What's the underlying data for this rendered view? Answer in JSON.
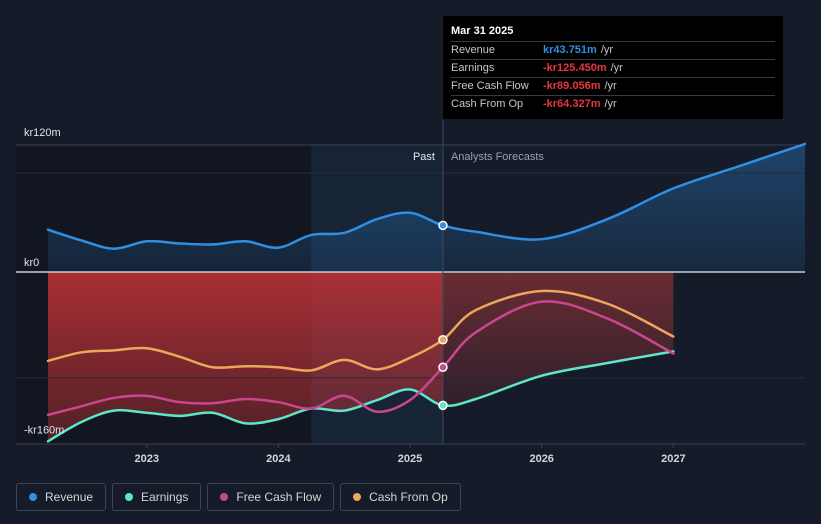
{
  "tooltip": {
    "date": "Mar 31 2025",
    "rows": [
      {
        "label": "Revenue",
        "value": "kr43.751m",
        "unit": "/yr",
        "color": "#2e8fe4"
      },
      {
        "label": "Earnings",
        "value": "-kr125.450m",
        "unit": "/yr",
        "color": "#e8363b"
      },
      {
        "label": "Free Cash Flow",
        "value": "-kr89.056m",
        "unit": "/yr",
        "color": "#e8363b"
      },
      {
        "label": "Cash From Op",
        "value": "-kr64.327m",
        "unit": "/yr",
        "color": "#e8363b"
      }
    ]
  },
  "legend": [
    {
      "label": "Revenue",
      "color": "#2e8fe4"
    },
    {
      "label": "Earnings",
      "color": "#5ee6c9"
    },
    {
      "label": "Free Cash Flow",
      "color": "#c9478e"
    },
    {
      "label": "Cash From Op",
      "color": "#e9a85c"
    }
  ],
  "chart_data": {
    "type": "line",
    "title": "",
    "y_axis_labels": [
      "kr120m",
      "kr0",
      "-kr160m"
    ],
    "ylim": [
      -160,
      120
    ],
    "x_ticks": [
      2023,
      2024,
      2025,
      2026,
      2027
    ],
    "xlim": [
      2022.25,
      2028.0
    ],
    "past_label": "Past",
    "forecast_label": "Analysts Forecasts",
    "divider_x": 2025.25,
    "highlight_start_x": 2024.25,
    "series": [
      {
        "name": "Revenue",
        "color": "#2e8fe4",
        "points": [
          [
            2022.25,
            40
          ],
          [
            2022.5,
            30
          ],
          [
            2022.75,
            22
          ],
          [
            2023.0,
            29
          ],
          [
            2023.25,
            27
          ],
          [
            2023.5,
            26
          ],
          [
            2023.75,
            29
          ],
          [
            2024.0,
            23
          ],
          [
            2024.25,
            35
          ],
          [
            2024.5,
            37
          ],
          [
            2024.75,
            50
          ],
          [
            2025.0,
            56
          ],
          [
            2025.25,
            44
          ],
          [
            2025.5,
            38
          ],
          [
            2026.0,
            31
          ],
          [
            2026.5,
            50
          ],
          [
            2027.0,
            79
          ],
          [
            2027.5,
            100
          ],
          [
            2028.0,
            121
          ]
        ]
      },
      {
        "name": "Earnings",
        "color": "#5ee6c9",
        "points": [
          [
            2022.25,
            -160
          ],
          [
            2022.5,
            -142
          ],
          [
            2022.75,
            -131
          ],
          [
            2023.0,
            -133
          ],
          [
            2023.25,
            -136
          ],
          [
            2023.5,
            -133
          ],
          [
            2023.75,
            -143
          ],
          [
            2024.0,
            -139
          ],
          [
            2024.25,
            -129
          ],
          [
            2024.5,
            -131
          ],
          [
            2024.75,
            -121
          ],
          [
            2025.0,
            -111
          ],
          [
            2025.25,
            -126
          ],
          [
            2025.5,
            -120
          ],
          [
            2026.0,
            -98
          ],
          [
            2026.5,
            -86
          ],
          [
            2027.0,
            -75
          ]
        ]
      },
      {
        "name": "Free Cash Flow",
        "color": "#c9478e",
        "points": [
          [
            2022.25,
            -135
          ],
          [
            2022.5,
            -127
          ],
          [
            2022.75,
            -119
          ],
          [
            2023.0,
            -117
          ],
          [
            2023.25,
            -123
          ],
          [
            2023.5,
            -124
          ],
          [
            2023.75,
            -120
          ],
          [
            2024.0,
            -123
          ],
          [
            2024.25,
            -129
          ],
          [
            2024.5,
            -117
          ],
          [
            2024.75,
            -132
          ],
          [
            2025.0,
            -121
          ],
          [
            2025.25,
            -90
          ],
          [
            2025.5,
            -57
          ],
          [
            2026.0,
            -28
          ],
          [
            2026.5,
            -44
          ],
          [
            2027.0,
            -77
          ]
        ]
      },
      {
        "name": "Cash From Op",
        "color": "#e9a85c",
        "points": [
          [
            2022.25,
            -84
          ],
          [
            2022.5,
            -76
          ],
          [
            2022.75,
            -74
          ],
          [
            2023.0,
            -72
          ],
          [
            2023.25,
            -80
          ],
          [
            2023.5,
            -90
          ],
          [
            2023.75,
            -89
          ],
          [
            2024.0,
            -90
          ],
          [
            2024.25,
            -93
          ],
          [
            2024.5,
            -83
          ],
          [
            2024.75,
            -92
          ],
          [
            2025.0,
            -81
          ],
          [
            2025.25,
            -64
          ],
          [
            2025.5,
            -36
          ],
          [
            2026.0,
            -18
          ],
          [
            2026.5,
            -30
          ],
          [
            2027.0,
            -61
          ]
        ]
      }
    ]
  }
}
